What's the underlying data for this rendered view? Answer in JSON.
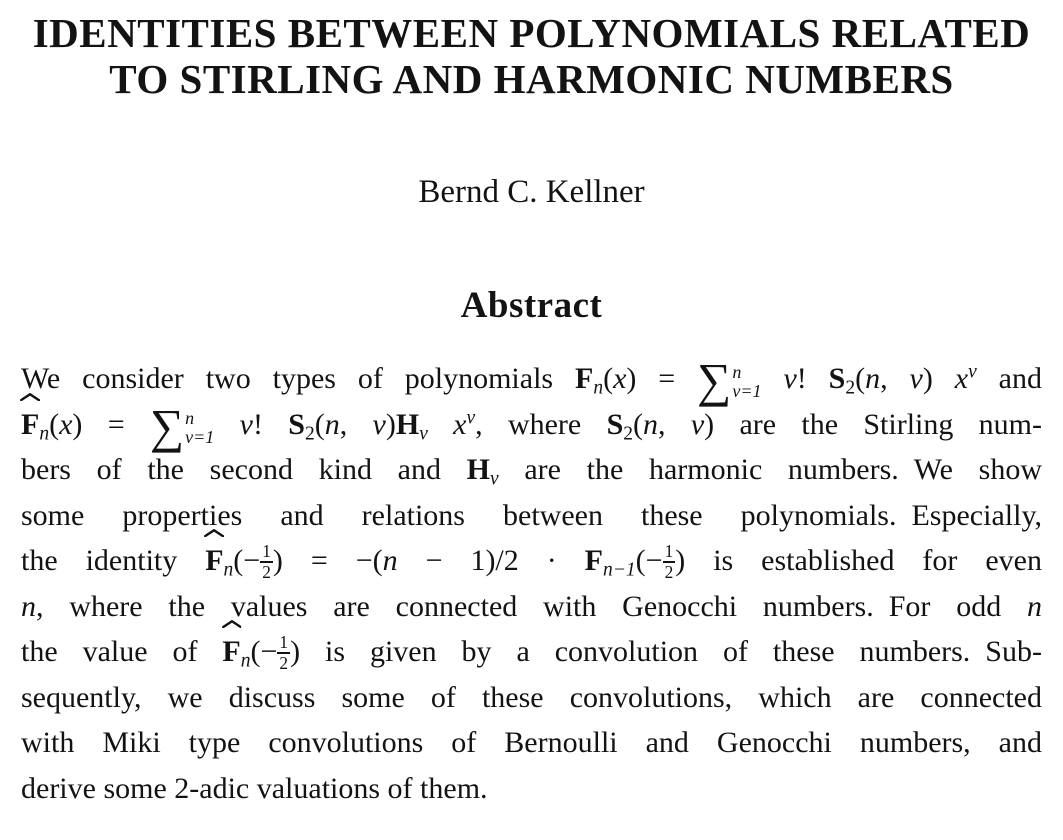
{
  "colors": {
    "text": "#131313",
    "background": "#ffffff"
  },
  "doc": {
    "title_line1": "IDENTITIES BETWEEN POLYNOMIALS RELATED",
    "title_line2": "TO STIRLING AND HARMONIC NUMBERS",
    "author": "Bernd C. Kellner",
    "section_heading": "Abstract"
  },
  "abstract_lines": [
    {
      "last": false,
      "runs": [
        {
          "t": "We consider two types of polynomials ",
          "f": "rm"
        },
        {
          "t": "F",
          "f": "bf"
        },
        {
          "t": "n",
          "f": "subit"
        },
        {
          "t": "(",
          "f": "rm"
        },
        {
          "t": "x",
          "f": "it"
        },
        {
          "t": ") = ",
          "f": "rm"
        },
        {
          "type": "sum",
          "sup": "n",
          "sub": "ν=1"
        },
        {
          "t": " ",
          "f": "rm"
        },
        {
          "t": "ν",
          "f": "it"
        },
        {
          "t": "! ",
          "f": "rm"
        },
        {
          "t": "S",
          "f": "bf"
        },
        {
          "t": "2",
          "f": "sub"
        },
        {
          "t": "(",
          "f": "rm"
        },
        {
          "t": "n",
          "f": "it"
        },
        {
          "t": ", ",
          "f": "rm"
        },
        {
          "t": "ν",
          "f": "it"
        },
        {
          "t": ") ",
          "f": "rm"
        },
        {
          "t": "x",
          "f": "it"
        },
        {
          "t": "ν",
          "f": "supit"
        },
        {
          "t": " and",
          "f": "rm"
        }
      ]
    },
    {
      "last": false,
      "runs": [
        {
          "type": "hat",
          "t": "F",
          "f": "bf"
        },
        {
          "t": "n",
          "f": "subit"
        },
        {
          "t": "(",
          "f": "rm"
        },
        {
          "t": "x",
          "f": "it"
        },
        {
          "t": ") = ",
          "f": "rm"
        },
        {
          "type": "sum",
          "sup": "n",
          "sub": "ν=1"
        },
        {
          "t": " ",
          "f": "rm"
        },
        {
          "t": "ν",
          "f": "it"
        },
        {
          "t": "! ",
          "f": "rm"
        },
        {
          "t": "S",
          "f": "bf"
        },
        {
          "t": "2",
          "f": "sub"
        },
        {
          "t": "(",
          "f": "rm"
        },
        {
          "t": "n",
          "f": "it"
        },
        {
          "t": ", ",
          "f": "rm"
        },
        {
          "t": "ν",
          "f": "it"
        },
        {
          "t": ")",
          "f": "rm"
        },
        {
          "t": "H",
          "f": "bf"
        },
        {
          "t": "ν",
          "f": "subit"
        },
        {
          "t": " ",
          "f": "rm"
        },
        {
          "t": "x",
          "f": "it"
        },
        {
          "t": "ν",
          "f": "supit"
        },
        {
          "t": ", where ",
          "f": "rm"
        },
        {
          "t": "S",
          "f": "bf"
        },
        {
          "t": "2",
          "f": "sub"
        },
        {
          "t": "(",
          "f": "rm"
        },
        {
          "t": "n",
          "f": "it"
        },
        {
          "t": ", ",
          "f": "rm"
        },
        {
          "t": "ν",
          "f": "it"
        },
        {
          "t": ")",
          "f": "rm"
        },
        {
          "t": " are the Stirling num-",
          "f": "rm"
        }
      ]
    },
    {
      "last": false,
      "runs": [
        {
          "t": "bers of the second kind and ",
          "f": "rm"
        },
        {
          "t": "H",
          "f": "bf"
        },
        {
          "t": "ν",
          "f": "subit"
        },
        {
          "t": " are the harmonic numbers. We show",
          "f": "rm"
        }
      ]
    },
    {
      "last": false,
      "runs": [
        {
          "t": "some properties and relations between these polynomials. Especially,",
          "f": "rm"
        }
      ]
    },
    {
      "last": false,
      "runs": [
        {
          "t": "the identity ",
          "f": "rm"
        },
        {
          "type": "hat",
          "t": "F",
          "f": "bf"
        },
        {
          "t": "n",
          "f": "subit"
        },
        {
          "t": "(−",
          "f": "rm"
        },
        {
          "type": "frac",
          "num": "1",
          "den": "2"
        },
        {
          "t": ") = −(",
          "f": "rm"
        },
        {
          "t": "n",
          "f": "it"
        },
        {
          "t": " − 1)/2 · ",
          "f": "rm"
        },
        {
          "t": "F",
          "f": "bf"
        },
        {
          "t": "n−1",
          "f": "subit"
        },
        {
          "t": "(−",
          "f": "rm"
        },
        {
          "type": "frac",
          "num": "1",
          "den": "2"
        },
        {
          "t": ") is established for even",
          "f": "rm"
        }
      ]
    },
    {
      "last": false,
      "runs": [
        {
          "t": "n",
          "f": "it"
        },
        {
          "t": ", where the values are connected with Genocchi numbers. For odd ",
          "f": "rm"
        },
        {
          "t": "n",
          "f": "it"
        }
      ]
    },
    {
      "last": false,
      "runs": [
        {
          "t": "the value of ",
          "f": "rm"
        },
        {
          "type": "hat",
          "t": "F",
          "f": "bf"
        },
        {
          "t": "n",
          "f": "subit"
        },
        {
          "t": "(−",
          "f": "rm"
        },
        {
          "type": "frac",
          "num": "1",
          "den": "2"
        },
        {
          "t": ") is given by a convolution of these numbers. Sub-",
          "f": "rm"
        }
      ]
    },
    {
      "last": false,
      "runs": [
        {
          "t": "sequently, we discuss some of these convolutions, which are connected",
          "f": "rm"
        }
      ]
    },
    {
      "last": false,
      "runs": [
        {
          "t": "with Miki type convolutions of Bernoulli and Genocchi numbers, and",
          "f": "rm"
        }
      ]
    },
    {
      "last": true,
      "runs": [
        {
          "t": "derive some 2-adic valuations of them.",
          "f": "rm"
        }
      ]
    }
  ]
}
